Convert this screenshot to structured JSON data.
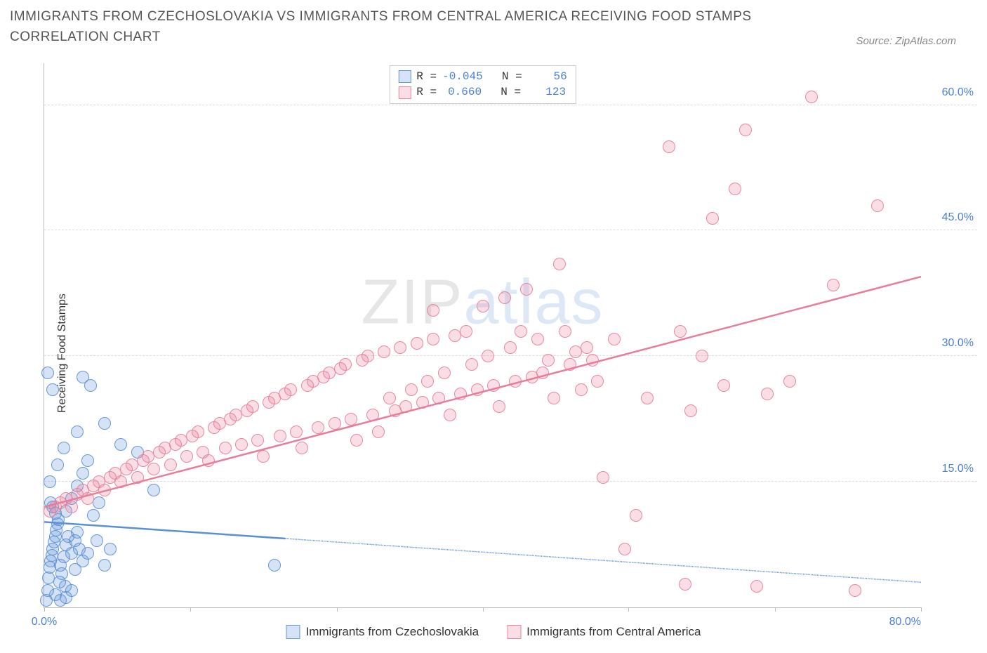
{
  "title": "IMMIGRANTS FROM CZECHOSLOVAKIA VS IMMIGRANTS FROM CENTRAL AMERICA RECEIVING FOOD STAMPS CORRELATION CHART",
  "source": "Source: ZipAtlas.com",
  "ylabel": "Receiving Food Stamps",
  "watermark_a": "ZIP",
  "watermark_b": "atlas",
  "chart": {
    "type": "scatter",
    "xlim": [
      0,
      80
    ],
    "ylim": [
      0,
      65
    ],
    "x_ticks": [
      0,
      13.3,
      26.7,
      40,
      53.3,
      66.7,
      80
    ],
    "x_tick_labels_shown": {
      "0": "0.0%",
      "80": "80.0%"
    },
    "y_ticks": [
      15,
      30,
      45,
      60
    ],
    "y_tick_labels": [
      "15.0%",
      "30.0%",
      "45.0%",
      "60.0%"
    ],
    "grid_color": "#dddddd",
    "axis_color": "#bbbbbb",
    "background_color": "#ffffff",
    "tick_label_color": "#4a7fd6",
    "point_radius": 9,
    "point_fill_opacity": 0.25,
    "point_stroke_opacity": 0.9,
    "series": [
      {
        "name": "Immigrants from Czechoslovakia",
        "color": "#5b8fd6",
        "fill": "rgba(91,143,214,0.25)",
        "stroke": "rgba(91,143,214,0.9)",
        "R": "-0.045",
        "N": "56",
        "regression": {
          "x1": 0,
          "y1": 10.2,
          "x2": 80,
          "y2": 3.0,
          "solid_until_x": 22
        },
        "points": [
          [
            0.2,
            0.8
          ],
          [
            0.3,
            2.0
          ],
          [
            0.4,
            3.5
          ],
          [
            0.5,
            4.8
          ],
          [
            0.6,
            5.5
          ],
          [
            0.7,
            6.2
          ],
          [
            0.8,
            7.0
          ],
          [
            0.9,
            7.8
          ],
          [
            1.0,
            8.5
          ],
          [
            1.1,
            9.2
          ],
          [
            1.2,
            10.0
          ],
          [
            1.3,
            10.5
          ],
          [
            1.0,
            11.2
          ],
          [
            0.8,
            12.0
          ],
          [
            0.6,
            12.5
          ],
          [
            1.5,
            5.0
          ],
          [
            1.8,
            6.0
          ],
          [
            2.0,
            7.5
          ],
          [
            2.2,
            8.5
          ],
          [
            1.4,
            3.0
          ],
          [
            1.6,
            4.0
          ],
          [
            1.9,
            2.5
          ],
          [
            2.5,
            6.5
          ],
          [
            2.8,
            8.0
          ],
          [
            3.0,
            9.0
          ],
          [
            3.2,
            7.0
          ],
          [
            2.0,
            11.5
          ],
          [
            2.5,
            13.0
          ],
          [
            3.0,
            14.5
          ],
          [
            3.5,
            16.0
          ],
          [
            4.0,
            17.5
          ],
          [
            3.0,
            21.0
          ],
          [
            1.8,
            19.0
          ],
          [
            1.2,
            17.0
          ],
          [
            0.5,
            15.0
          ],
          [
            1.0,
            1.5
          ],
          [
            1.5,
            0.8
          ],
          [
            2.0,
            1.2
          ],
          [
            2.5,
            2.0
          ],
          [
            4.5,
            11.0
          ],
          [
            5.0,
            12.5
          ],
          [
            3.5,
            27.5
          ],
          [
            4.2,
            26.5
          ],
          [
            5.5,
            22.0
          ],
          [
            0.3,
            28.0
          ],
          [
            0.8,
            26.0
          ],
          [
            2.8,
            4.5
          ],
          [
            3.5,
            5.5
          ],
          [
            4.0,
            6.5
          ],
          [
            4.8,
            8.0
          ],
          [
            5.5,
            5.0
          ],
          [
            6.0,
            7.0
          ],
          [
            7.0,
            19.5
          ],
          [
            8.5,
            18.5
          ],
          [
            10.0,
            14.0
          ],
          [
            21.0,
            5.0
          ]
        ]
      },
      {
        "name": "Immigrants from Central America",
        "color": "#e87d9a",
        "fill": "rgba(232,125,154,0.25)",
        "stroke": "rgba(232,125,154,0.9)",
        "R": "0.660",
        "N": "123",
        "regression": {
          "x1": 0,
          "y1": 12.0,
          "x2": 80,
          "y2": 39.5,
          "solid_until_x": 80
        },
        "points": [
          [
            0.5,
            11.5
          ],
          [
            1.0,
            12.0
          ],
          [
            1.5,
            12.5
          ],
          [
            2.0,
            13.0
          ],
          [
            2.5,
            12.0
          ],
          [
            3.0,
            13.5
          ],
          [
            3.5,
            14.0
          ],
          [
            4.0,
            13.0
          ],
          [
            4.5,
            14.5
          ],
          [
            5.0,
            15.0
          ],
          [
            5.5,
            14.0
          ],
          [
            6.0,
            15.5
          ],
          [
            6.5,
            16.0
          ],
          [
            7.0,
            15.0
          ],
          [
            7.5,
            16.5
          ],
          [
            8.0,
            17.0
          ],
          [
            8.5,
            15.5
          ],
          [
            9.0,
            17.5
          ],
          [
            9.5,
            18.0
          ],
          [
            10.0,
            16.5
          ],
          [
            10.5,
            18.5
          ],
          [
            11.0,
            19.0
          ],
          [
            11.5,
            17.0
          ],
          [
            12.0,
            19.5
          ],
          [
            12.5,
            20.0
          ],
          [
            13.0,
            18.0
          ],
          [
            13.5,
            20.5
          ],
          [
            14.0,
            21.0
          ],
          [
            14.5,
            18.5
          ],
          [
            15.0,
            17.5
          ],
          [
            15.5,
            21.5
          ],
          [
            16.0,
            22.0
          ],
          [
            16.5,
            19.0
          ],
          [
            17.0,
            22.5
          ],
          [
            17.5,
            23.0
          ],
          [
            18.0,
            19.5
          ],
          [
            18.5,
            23.5
          ],
          [
            19.0,
            24.0
          ],
          [
            19.5,
            20.0
          ],
          [
            20.0,
            18.0
          ],
          [
            20.5,
            24.5
          ],
          [
            21.0,
            25.0
          ],
          [
            21.5,
            20.5
          ],
          [
            22.0,
            25.5
          ],
          [
            22.5,
            26.0
          ],
          [
            23.0,
            21.0
          ],
          [
            23.5,
            19.0
          ],
          [
            24.0,
            26.5
          ],
          [
            24.5,
            27.0
          ],
          [
            25.0,
            21.5
          ],
          [
            25.5,
            27.5
          ],
          [
            26.0,
            28.0
          ],
          [
            26.5,
            22.0
          ],
          [
            27.0,
            28.5
          ],
          [
            27.5,
            29.0
          ],
          [
            28.0,
            22.5
          ],
          [
            28.5,
            20.0
          ],
          [
            29.0,
            29.5
          ],
          [
            29.5,
            30.0
          ],
          [
            30.0,
            23.0
          ],
          [
            30.5,
            21.0
          ],
          [
            31.0,
            30.5
          ],
          [
            31.5,
            25.0
          ],
          [
            32.0,
            23.5
          ],
          [
            32.5,
            31.0
          ],
          [
            33.0,
            24.0
          ],
          [
            33.5,
            26.0
          ],
          [
            34.0,
            31.5
          ],
          [
            34.5,
            24.5
          ],
          [
            35.0,
            27.0
          ],
          [
            35.5,
            32.0
          ],
          [
            36.0,
            25.0
          ],
          [
            36.5,
            28.0
          ],
          [
            37.0,
            23.0
          ],
          [
            37.5,
            32.5
          ],
          [
            38.0,
            25.5
          ],
          [
            38.5,
            33.0
          ],
          [
            39.0,
            29.0
          ],
          [
            39.5,
            26.0
          ],
          [
            40.0,
            36.0
          ],
          [
            40.5,
            30.0
          ],
          [
            41.0,
            26.5
          ],
          [
            41.5,
            24.0
          ],
          [
            42.0,
            37.0
          ],
          [
            42.5,
            31.0
          ],
          [
            43.0,
            27.0
          ],
          [
            43.5,
            33.0
          ],
          [
            44.0,
            38.0
          ],
          [
            44.5,
            27.5
          ],
          [
            45.0,
            32.0
          ],
          [
            45.5,
            28.0
          ],
          [
            46.0,
            29.5
          ],
          [
            46.5,
            25.0
          ],
          [
            47.0,
            41.0
          ],
          [
            47.5,
            33.0
          ],
          [
            48.0,
            29.0
          ],
          [
            48.5,
            30.5
          ],
          [
            49.0,
            26.0
          ],
          [
            49.5,
            31.0
          ],
          [
            50.0,
            29.5
          ],
          [
            50.5,
            27.0
          ],
          [
            51.0,
            15.5
          ],
          [
            52.0,
            32.0
          ],
          [
            54.0,
            11.0
          ],
          [
            55.0,
            25.0
          ],
          [
            57.0,
            55.0
          ],
          [
            58.0,
            33.0
          ],
          [
            59.0,
            23.5
          ],
          [
            60.0,
            30.0
          ],
          [
            61.0,
            46.5
          ],
          [
            62.0,
            26.5
          ],
          [
            63.0,
            50.0
          ],
          [
            64.0,
            57.0
          ],
          [
            66.0,
            25.5
          ],
          [
            68.0,
            27.0
          ],
          [
            70.0,
            61.0
          ],
          [
            72.0,
            38.5
          ],
          [
            74.0,
            2.0
          ],
          [
            76.0,
            48.0
          ],
          [
            65.0,
            2.5
          ],
          [
            58.5,
            2.8
          ],
          [
            53.0,
            7.0
          ],
          [
            35.5,
            35.5
          ]
        ]
      }
    ]
  },
  "bottom_legend": [
    "Immigrants from Czechoslovakia",
    "Immigrants from Central America"
  ]
}
